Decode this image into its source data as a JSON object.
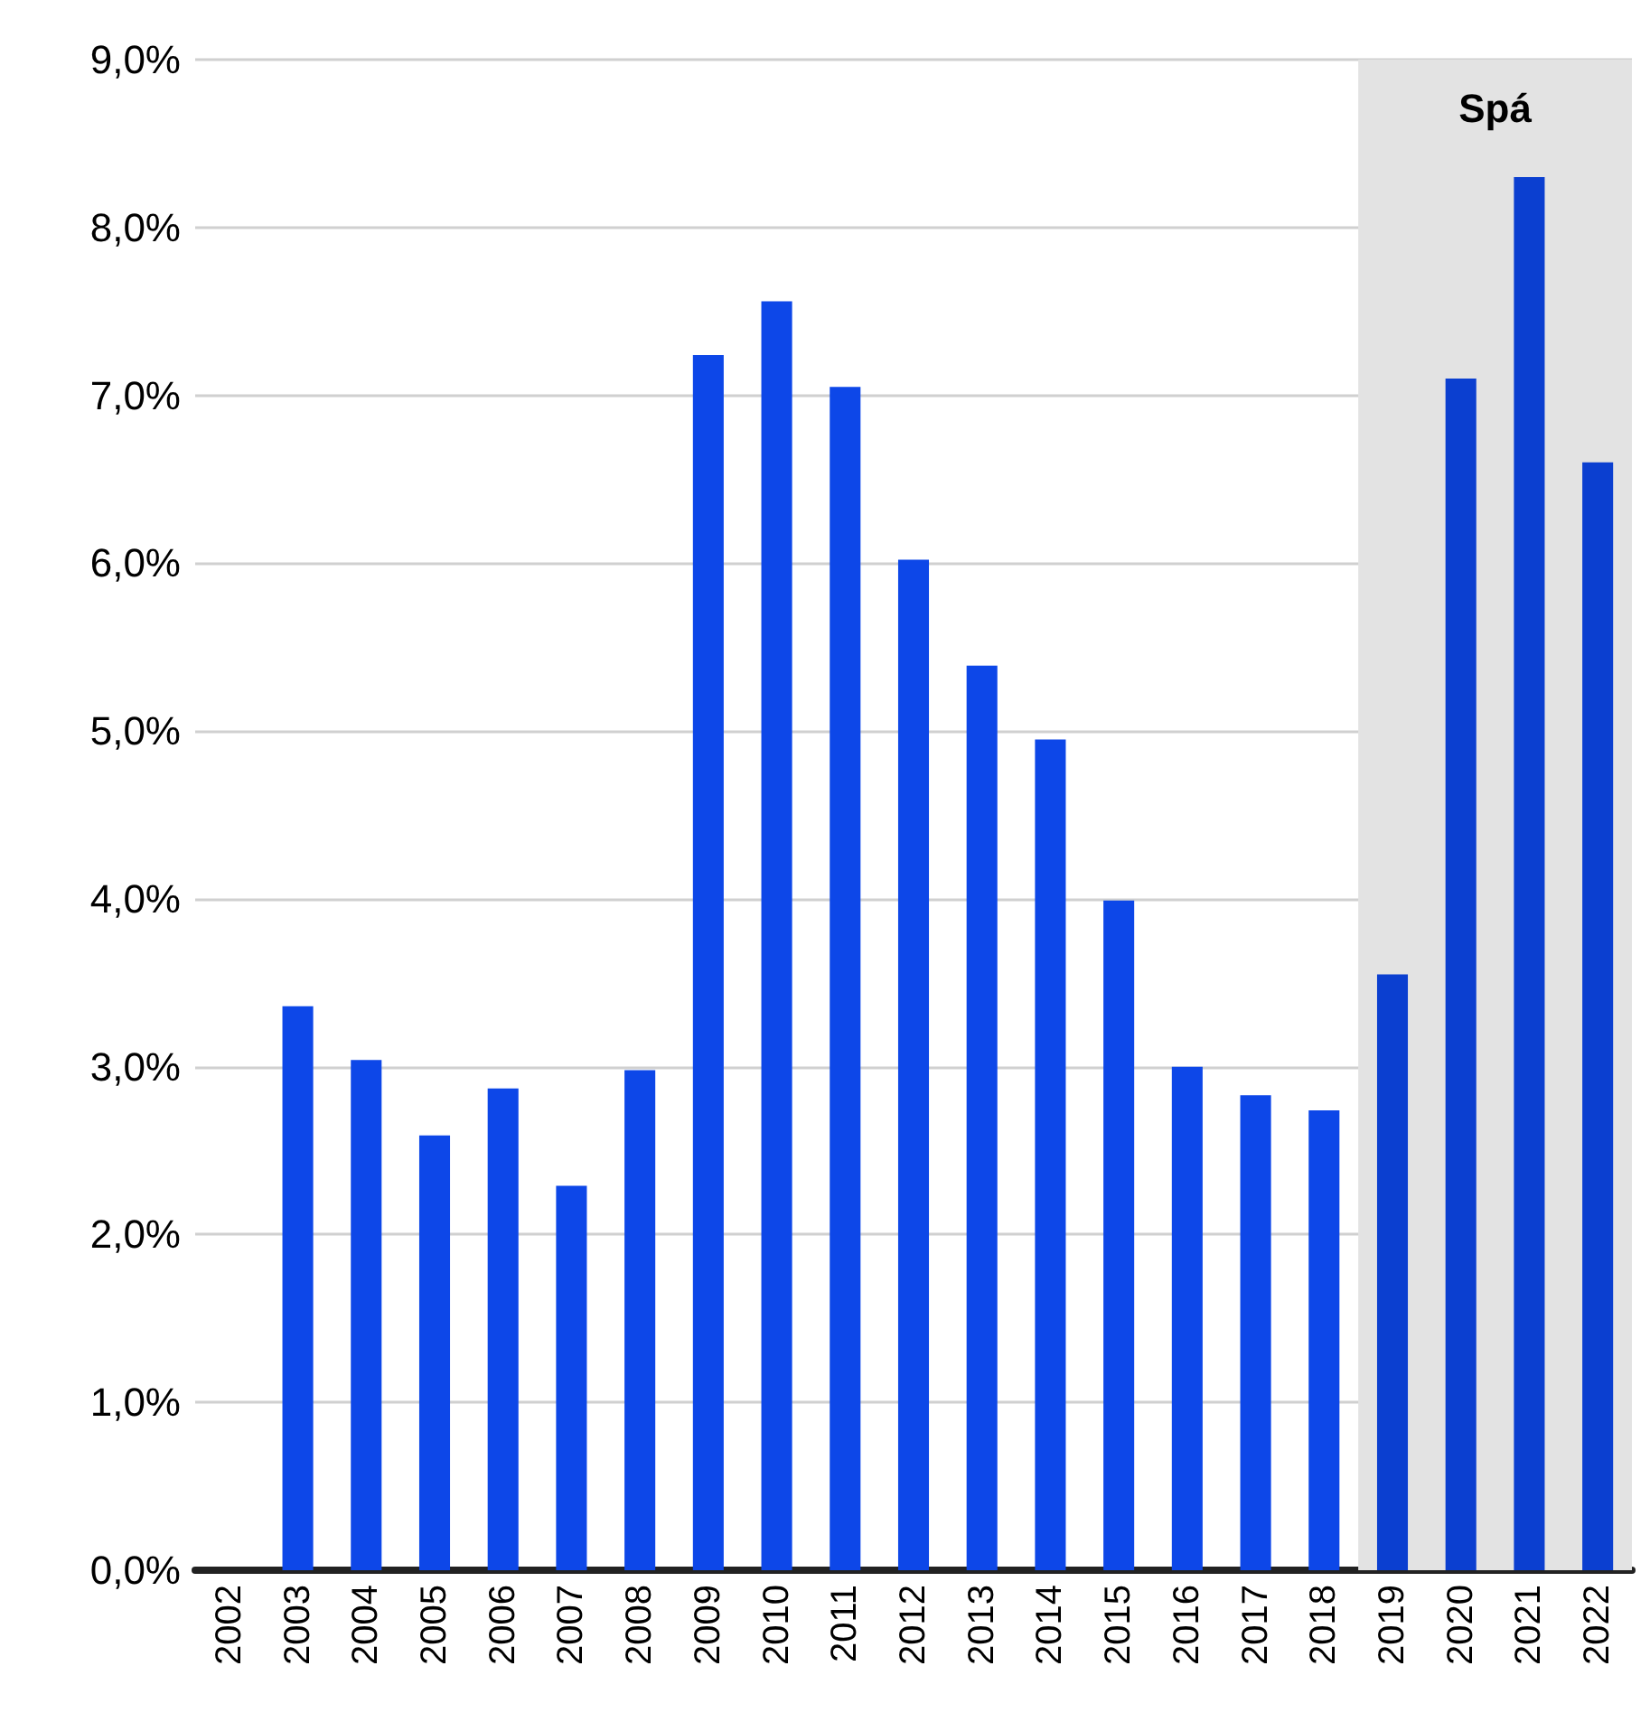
{
  "chart_data": {
    "type": "bar",
    "categories": [
      "2002",
      "2003",
      "2004",
      "2005",
      "2006",
      "2007",
      "2008",
      "2009",
      "2010",
      "2011",
      "2012",
      "2013",
      "2014",
      "2015",
      "2016",
      "2017",
      "2018",
      "2019",
      "2020",
      "2021",
      "2022"
    ],
    "values": [
      null,
      3.36,
      3.04,
      2.59,
      2.87,
      2.29,
      2.98,
      7.24,
      7.56,
      7.05,
      6.02,
      5.39,
      4.95,
      3.99,
      3.0,
      2.83,
      2.74,
      3.55,
      7.1,
      8.3,
      6.6
    ],
    "colors": [
      "#0d47e8",
      "#0d47e8",
      "#0d47e8",
      "#0d47e8",
      "#0d47e8",
      "#0d47e8",
      "#0d47e8",
      "#0d47e8",
      "#0d47e8",
      "#0d47e8",
      "#0d47e8",
      "#0d47e8",
      "#0d47e8",
      "#0d47e8",
      "#0d47e8",
      "#0d47e8",
      "#0d47e8",
      "#0b3fd0",
      "#0b3fd0",
      "#0b3fd0",
      "#0b3fd0"
    ],
    "ylim": [
      0,
      9
    ],
    "yticks": [
      {
        "value": 0,
        "label": "0,0%"
      },
      {
        "value": 1,
        "label": "1,0%"
      },
      {
        "value": 2,
        "label": "2,0%"
      },
      {
        "value": 3,
        "label": "3,0%"
      },
      {
        "value": 4,
        "label": "4,0%"
      },
      {
        "value": 5,
        "label": "5,0%"
      },
      {
        "value": 6,
        "label": "6,0%"
      },
      {
        "value": 7,
        "label": "7,0%"
      },
      {
        "value": 8,
        "label": "8,0%"
      },
      {
        "value": 9,
        "label": "9,0%"
      }
    ],
    "bands": [
      {
        "axis": "x",
        "from": "2019",
        "to": "2022",
        "label": "Spá",
        "color": "#e3e3e3"
      }
    ],
    "grid": "y"
  }
}
